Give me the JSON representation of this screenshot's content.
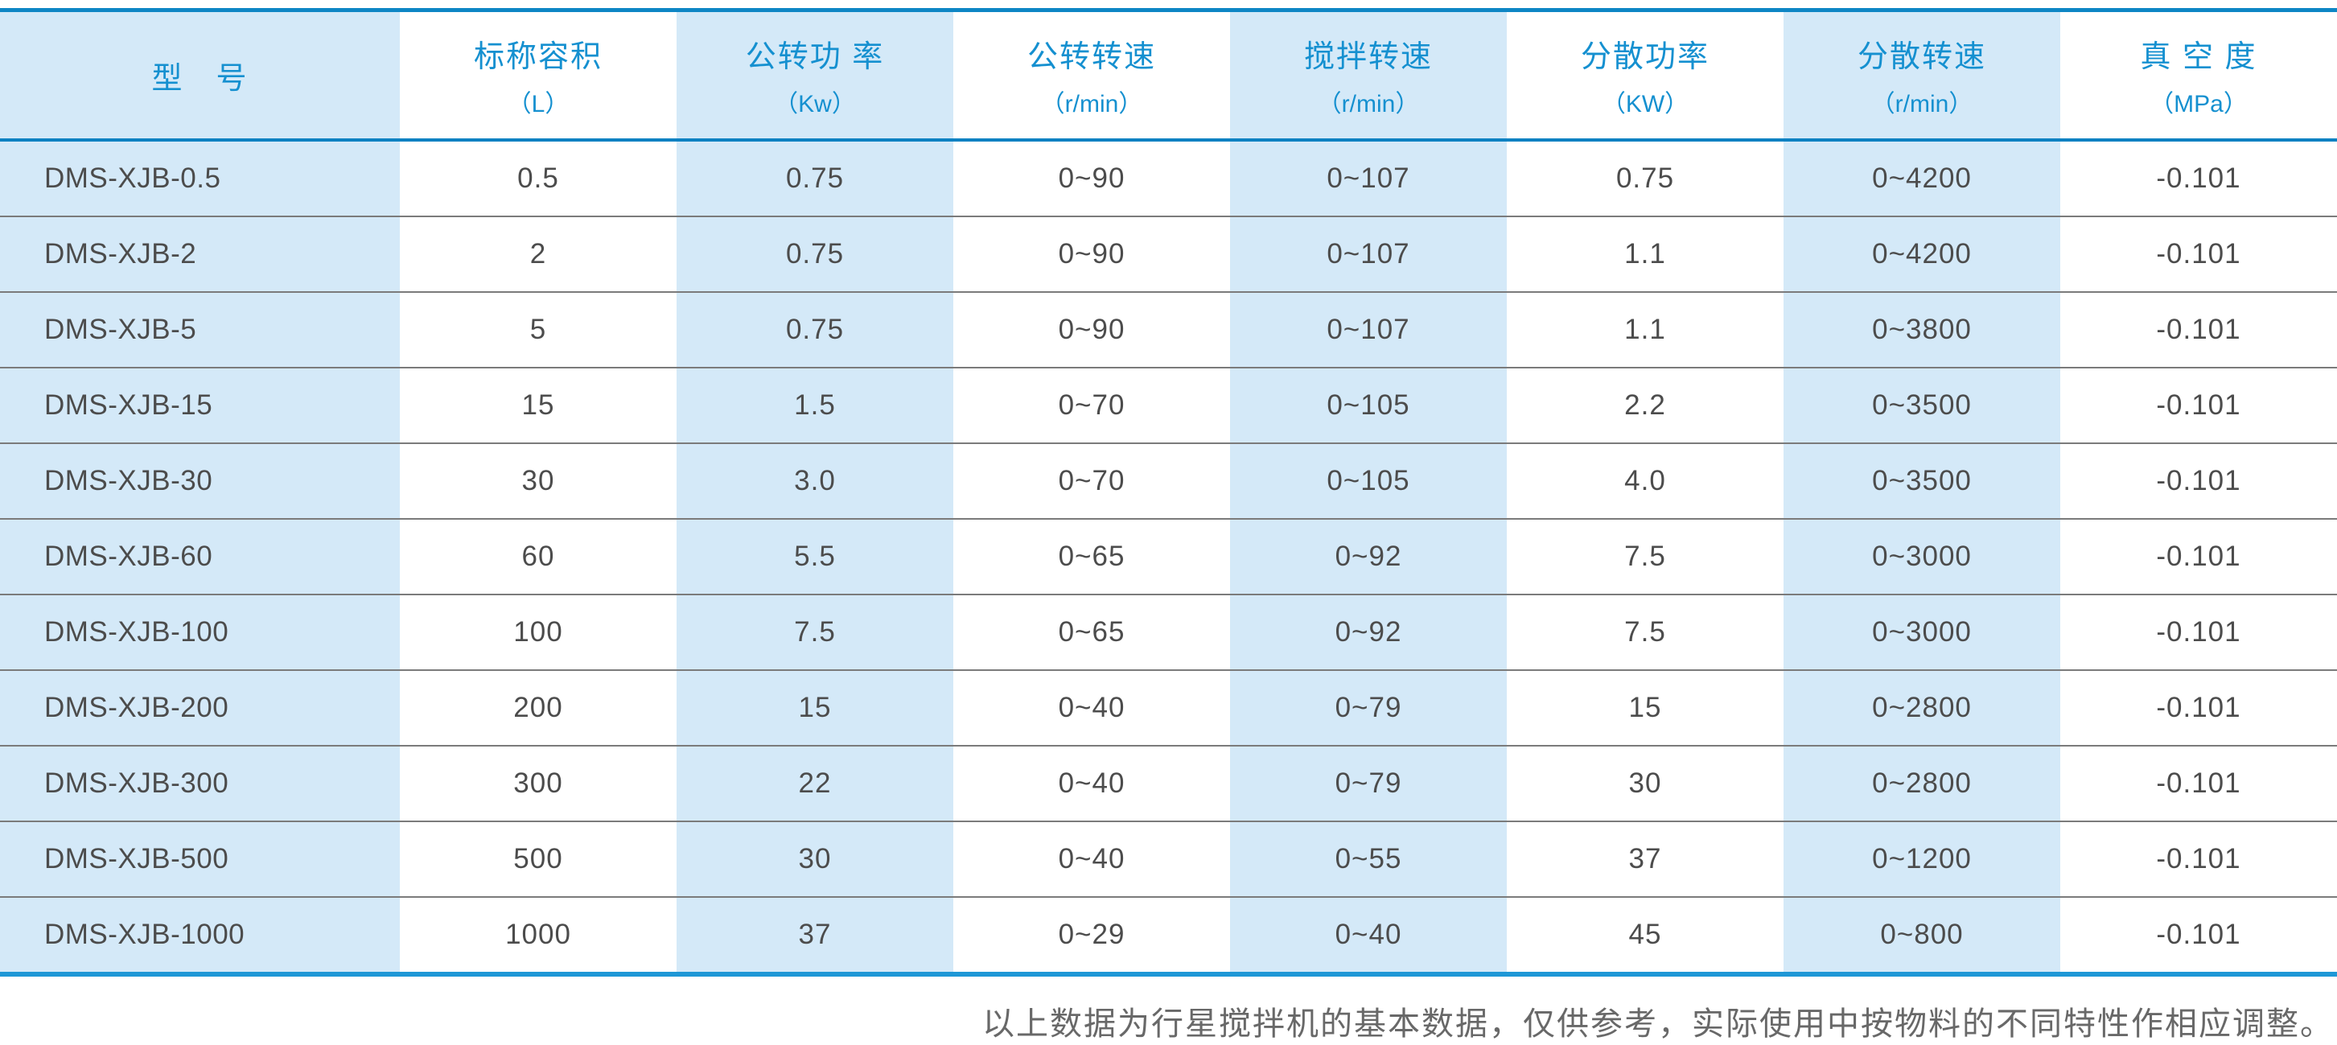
{
  "colors": {
    "accent_blue_text": "#1590d0",
    "top_rule_blue": "#0e86c5",
    "header_rule_blue": "#0d81c2",
    "bottom_rule_blue": "#1e97d6",
    "stripe_light_blue": "#d4e9f8",
    "row_divider_gray": "#7b7b7b",
    "data_text_gray": "#4c4c4c",
    "note_text_gray": "#686868"
  },
  "table": {
    "columns": [
      {
        "label": "型　号",
        "unit": ""
      },
      {
        "label": "标称容积",
        "unit": "（L）"
      },
      {
        "label": "公转功 率",
        "unit": "（Kw）"
      },
      {
        "label": "公转转速",
        "unit": "（r/min）"
      },
      {
        "label": "搅拌转速",
        "unit": "（r/min）"
      },
      {
        "label": "分散功率",
        "unit": "（KW）"
      },
      {
        "label": "分散转速",
        "unit": "（r/min）"
      },
      {
        "label": "真 空 度",
        "unit": "（MPa）"
      }
    ],
    "rows": [
      [
        "DMS-XJB-0.5",
        "0.5",
        "0.75",
        "0~90",
        "0~107",
        "0.75",
        "0~4200",
        "-0.101"
      ],
      [
        "DMS-XJB-2",
        "2",
        "0.75",
        "0~90",
        "0~107",
        "1.1",
        "0~4200",
        "-0.101"
      ],
      [
        "DMS-XJB-5",
        "5",
        "0.75",
        "0~90",
        "0~107",
        "1.1",
        "0~3800",
        "-0.101"
      ],
      [
        "DMS-XJB-15",
        "15",
        "1.5",
        "0~70",
        "0~105",
        "2.2",
        "0~3500",
        "-0.101"
      ],
      [
        "DMS-XJB-30",
        "30",
        "3.0",
        "0~70",
        "0~105",
        "4.0",
        "0~3500",
        "-0.101"
      ],
      [
        "DMS-XJB-60",
        "60",
        "5.5",
        "0~65",
        "0~92",
        "7.5",
        "0~3000",
        "-0.101"
      ],
      [
        "DMS-XJB-100",
        "100",
        "7.5",
        "0~65",
        "0~92",
        "7.5",
        "0~3000",
        "-0.101"
      ],
      [
        "DMS-XJB-200",
        "200",
        "15",
        "0~40",
        "0~79",
        "15",
        "0~2800",
        "-0.101"
      ],
      [
        "DMS-XJB-300",
        "300",
        "22",
        "0~40",
        "0~79",
        "30",
        "0~2800",
        "-0.101"
      ],
      [
        "DMS-XJB-500",
        "500",
        "30",
        "0~40",
        "0~55",
        "37",
        "0~1200",
        "-0.101"
      ],
      [
        "DMS-XJB-1000",
        "1000",
        "37",
        "0~29",
        "0~40",
        "45",
        "0~800",
        "-0.101"
      ]
    ]
  },
  "note": "以上数据为行星搅拌机的基本数据，仅供参考，实际使用中按物料的不同特性作相应调整。"
}
